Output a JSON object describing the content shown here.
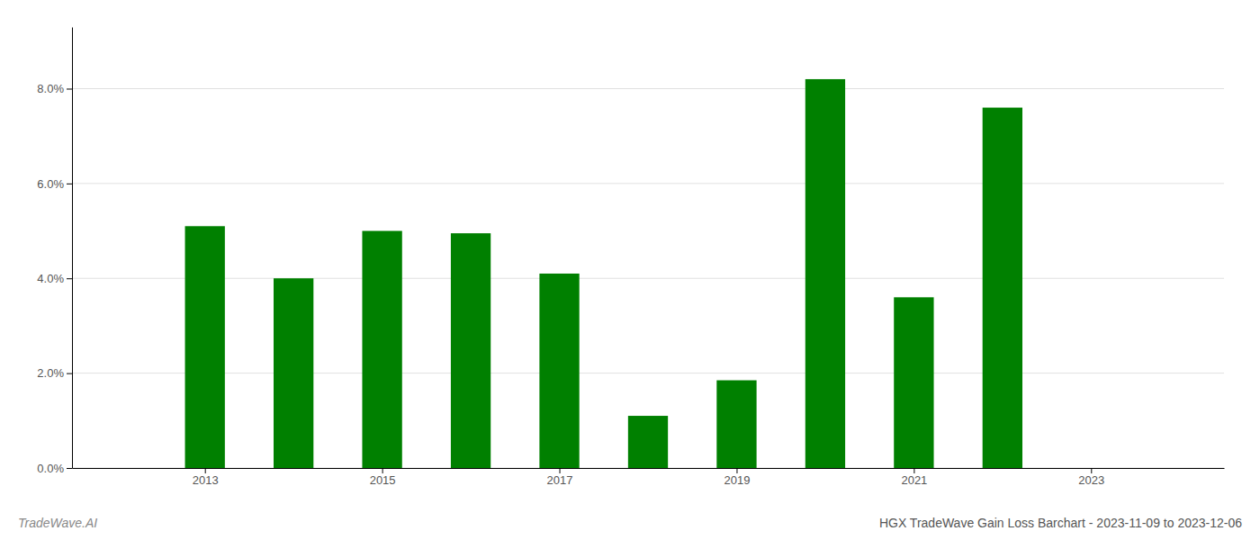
{
  "chart_data": {
    "type": "bar",
    "title": "HGX TradeWave Gain Loss Barchart - 2023-11-09 to 2023-12-06",
    "annotations": [
      "TradeWave.AI"
    ],
    "x": [
      2013,
      2014,
      2015,
      2016,
      2017,
      2018,
      2019,
      2020,
      2021,
      2022
    ],
    "values": [
      0.051,
      0.04,
      0.05,
      0.0495,
      0.041,
      0.011,
      0.0185,
      0.082,
      0.036,
      0.076
    ],
    "color": "#008000",
    "xlim": [
      2011.5,
      2024.5
    ],
    "xticks": [
      2013,
      2015,
      2017,
      2019,
      2021,
      2023
    ],
    "ylim": [
      0,
      0.093
    ],
    "yticks": [
      {
        "value": 0.0,
        "label": "0.0%"
      },
      {
        "value": 0.02,
        "label": "2.0%"
      },
      {
        "value": 0.04,
        "label": "4.0%"
      },
      {
        "value": 0.06,
        "label": "6.0%"
      },
      {
        "value": 0.08,
        "label": "8.0%"
      }
    ],
    "grid": true
  }
}
